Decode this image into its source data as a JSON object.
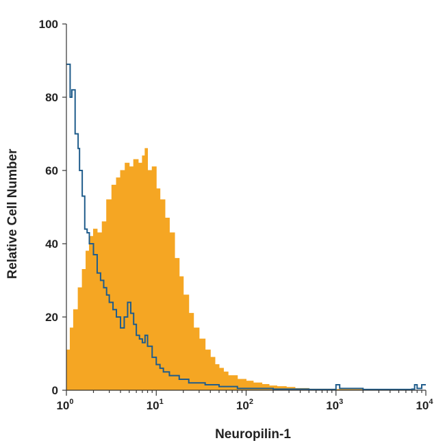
{
  "chart_data": {
    "type": "area",
    "xlabel": "Neuropilin-1",
    "ylabel": "Relative Cell Number",
    "xscale": "log",
    "xlim": [
      1,
      10000
    ],
    "ylim": [
      0,
      100
    ],
    "grid": false,
    "x_ticks": [
      {
        "base": "10",
        "exp": "0",
        "value": 1
      },
      {
        "base": "10",
        "exp": "1",
        "value": 10
      },
      {
        "base": "10",
        "exp": "2",
        "value": 100
      },
      {
        "base": "10",
        "exp": "3",
        "value": 1000
      },
      {
        "base": "10",
        "exp": "4",
        "value": 10000
      }
    ],
    "y_ticks": [
      "0",
      "20",
      "40",
      "60",
      "80",
      "100"
    ],
    "series": [
      {
        "style": "filled",
        "color": "#F5A623",
        "x": [
          1,
          1.1,
          1.2,
          1.35,
          1.5,
          1.65,
          1.8,
          2,
          2.2,
          2.5,
          2.8,
          3.2,
          3.6,
          4,
          4.5,
          5,
          5.6,
          6.3,
          7,
          7.5,
          8,
          9,
          10,
          11,
          12.5,
          14,
          16,
          18,
          20,
          23,
          26,
          30,
          35,
          40,
          45,
          50,
          56,
          63,
          70,
          80,
          90,
          100,
          120,
          150,
          180,
          220,
          280,
          350,
          500,
          1000,
          2000,
          5000,
          10000
        ],
        "y": [
          11,
          17,
          22,
          28,
          33,
          38,
          42,
          44,
          43,
          46,
          52,
          56,
          58,
          60,
          62,
          61,
          63,
          62,
          64,
          66,
          60,
          61,
          55,
          52,
          47,
          43,
          36,
          31,
          26,
          21,
          17,
          14,
          11,
          9,
          7,
          6,
          5,
          4,
          4,
          3,
          3,
          2.5,
          2,
          1.6,
          1.2,
          1,
          0.8,
          0.5,
          0.3,
          0.2,
          0.1,
          0,
          0
        ]
      },
      {
        "style": "outline",
        "color": "#1F5C8B",
        "x": [
          1,
          1.1,
          1.15,
          1.25,
          1.35,
          1.4,
          1.5,
          1.6,
          1.7,
          1.8,
          2,
          2.2,
          2.4,
          2.6,
          2.8,
          3,
          3.3,
          3.6,
          4,
          4.4,
          4.8,
          5.2,
          5.6,
          6,
          6.5,
          7,
          7.5,
          8,
          9,
          10,
          11,
          12,
          14,
          16,
          18,
          20,
          23,
          26,
          30,
          35,
          40,
          50,
          60,
          70,
          80,
          100,
          200,
          500,
          900,
          1000,
          1100,
          2000,
          5000,
          7000,
          7500,
          8000,
          9000,
          10000
        ],
        "y": [
          89,
          80,
          82,
          70,
          66,
          60,
          53,
          44,
          43,
          40,
          37,
          32,
          30,
          28,
          26,
          24,
          22,
          20,
          17,
          20,
          24,
          21,
          18,
          15,
          14,
          13,
          15,
          12,
          9,
          7,
          6,
          5,
          4,
          4,
          3,
          3,
          2,
          2,
          2,
          1.5,
          1.5,
          1,
          1,
          1,
          0.5,
          0.5,
          0.3,
          0.2,
          0.2,
          1.5,
          0.5,
          0.2,
          0.2,
          0.3,
          1.5,
          0.5,
          1.5,
          1.5
        ]
      }
    ]
  }
}
